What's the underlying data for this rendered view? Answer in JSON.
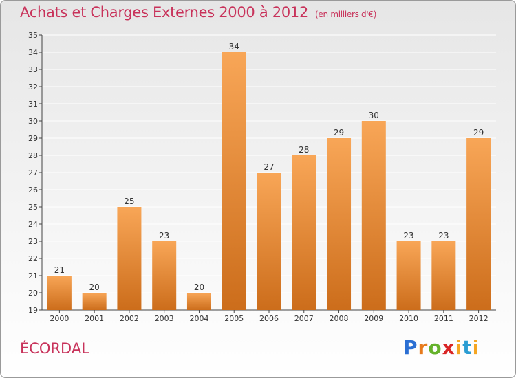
{
  "title": "Achats et Charges Externes 2000 à 2012",
  "unit": "(en milliers d'€)",
  "place": "ÉCORDAL",
  "logo": {
    "p": "P",
    "r": "r",
    "o": "o",
    "x": "x",
    "i": "i",
    "t": "t",
    "i2": "i"
  },
  "colors": {
    "bar_light": "#f8a657",
    "bar_dark": "#cc6d1b",
    "title": "#c8325a",
    "grid": "#ffffff"
  },
  "chart_data": {
    "type": "bar",
    "title": "Achats et Charges Externes 2000 à 2012",
    "categories": [
      "2000",
      "2001",
      "2002",
      "2003",
      "2004",
      "2005",
      "2006",
      "2007",
      "2008",
      "2009",
      "2010",
      "2011",
      "2012"
    ],
    "values": [
      21,
      20,
      25,
      23,
      20,
      34,
      27,
      28,
      29,
      30,
      23,
      23,
      29
    ],
    "ylim": [
      19,
      35
    ],
    "yticks": [
      "19",
      "20",
      "21",
      "22",
      "23",
      "24",
      "25",
      "26",
      "27",
      "28",
      "29",
      "30",
      "31",
      "32",
      "33",
      "34",
      "35"
    ],
    "grid": true,
    "xlabel": "",
    "ylabel": ""
  }
}
